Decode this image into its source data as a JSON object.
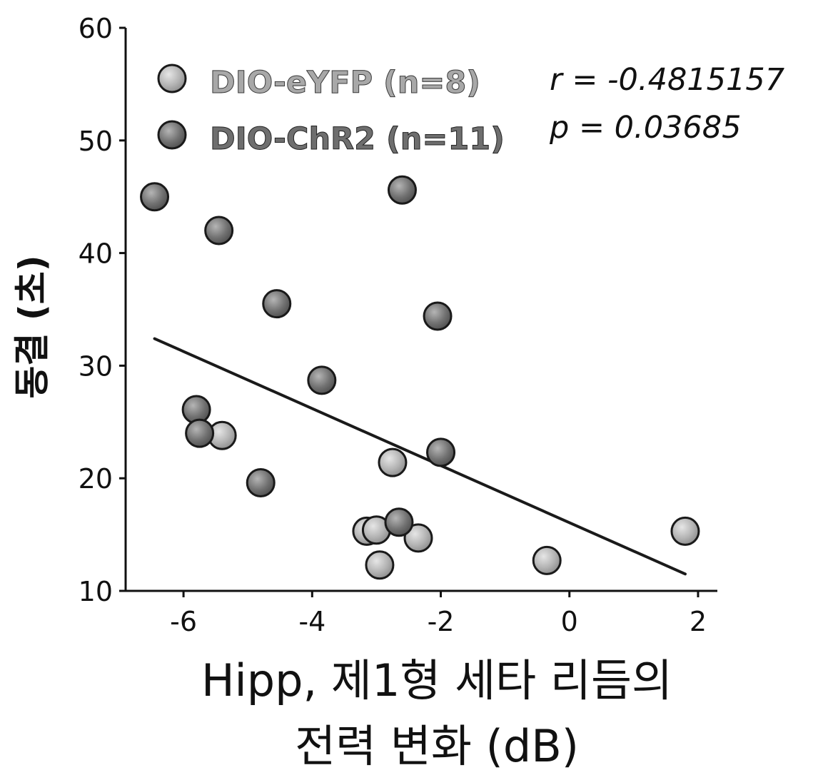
{
  "chart_data": {
    "type": "scatter",
    "xlabel_line1": "Hipp, 제1형 세타 리듬의",
    "xlabel_line2": "전력 변화 (dB)",
    "ylabel": "동결 (초)",
    "xlim": [
      -6.9,
      2.3
    ],
    "ylim": [
      10,
      60
    ],
    "xticks": [
      -6,
      -4,
      -2,
      0,
      2
    ],
    "yticks": [
      10,
      20,
      30,
      40,
      50,
      60
    ],
    "xtick_labels": [
      "-6",
      "-4",
      "-2",
      "0",
      "2"
    ],
    "ytick_labels": [
      "10",
      "20",
      "30",
      "40",
      "50",
      "60"
    ],
    "grid": false,
    "legend_position": "top-left",
    "stats": {
      "r_text": "r = -0.4815157",
      "p_text": "p = 0.03685"
    },
    "series": [
      {
        "name": "DIO-eYFP (n=8)",
        "color": "#a3a3a3",
        "points": [
          {
            "x": -5.4,
            "y": 23.8
          },
          {
            "x": -2.75,
            "y": 21.4
          },
          {
            "x": -3.15,
            "y": 15.3
          },
          {
            "x": -3.0,
            "y": 15.4
          },
          {
            "x": -2.35,
            "y": 14.7
          },
          {
            "x": -2.95,
            "y": 12.3
          },
          {
            "x": -0.35,
            "y": 12.7
          },
          {
            "x": 1.8,
            "y": 15.3
          }
        ]
      },
      {
        "name": "DIO-ChR2 (n=11)",
        "color": "#6a6a6a",
        "points": [
          {
            "x": -6.45,
            "y": 45.0
          },
          {
            "x": -5.45,
            "y": 42.0
          },
          {
            "x": -4.55,
            "y": 35.5
          },
          {
            "x": -3.85,
            "y": 28.7
          },
          {
            "x": -5.8,
            "y": 26.1
          },
          {
            "x": -5.75,
            "y": 24.0
          },
          {
            "x": -4.8,
            "y": 19.6
          },
          {
            "x": -2.6,
            "y": 45.6
          },
          {
            "x": -2.05,
            "y": 34.4
          },
          {
            "x": -2.0,
            "y": 22.3
          },
          {
            "x": -2.65,
            "y": 16.1
          }
        ]
      }
    ],
    "fit_line": {
      "x": [
        -6.45,
        1.8
      ],
      "y": [
        32.4,
        11.5
      ],
      "color": "#1a1a1a"
    }
  }
}
